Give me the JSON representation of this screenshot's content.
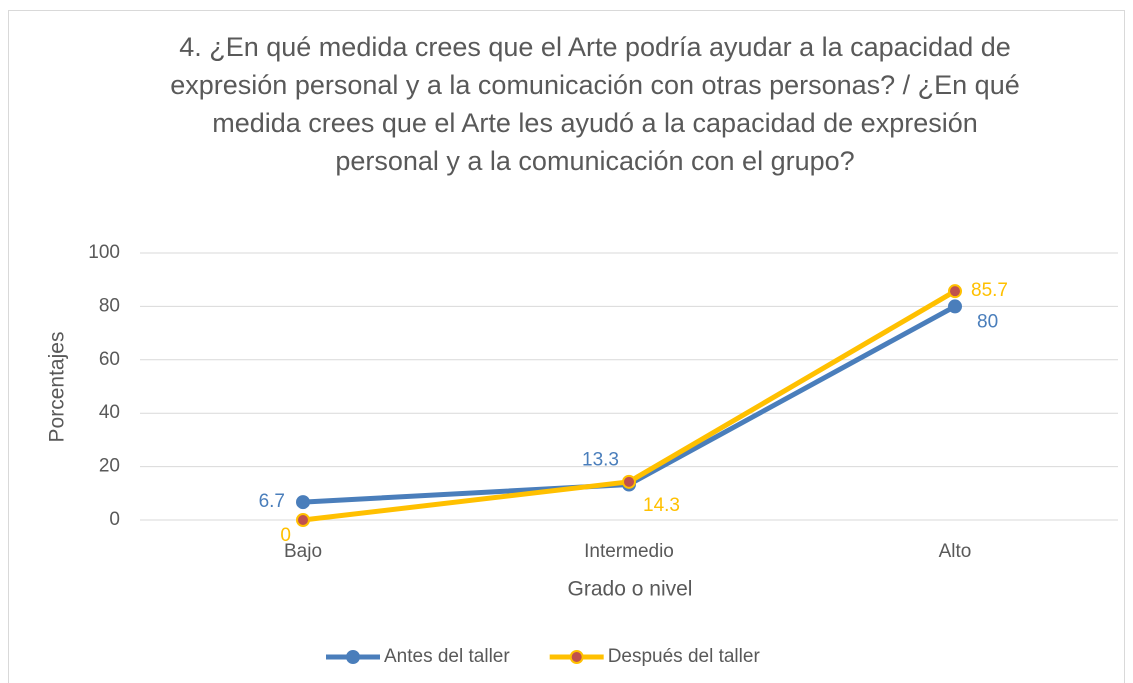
{
  "chart_data": {
    "type": "line",
    "title": "4. ¿En qué medida crees que el Arte podría ayudar a la capacidad de expresión personal y a la comunicación con otras personas? / ¿En qué medida crees que el Arte les ayudó a la capacidad de expresión personal y a la comunicación con el grupo?",
    "x_label": "Grado o nivel",
    "y_label": "Porcentajes",
    "categories": [
      "Bajo",
      "Intermedio",
      "Alto"
    ],
    "series": [
      {
        "name": "Antes del taller",
        "color": "#4a7ebb",
        "marker_color": "#4a7ebb",
        "values": [
          6.7,
          13.3,
          80
        ]
      },
      {
        "name": "Después del taller",
        "color": "#ffc000",
        "marker_color": "#c0504d",
        "values": [
          0,
          14.3,
          85.7
        ]
      }
    ],
    "ylim": [
      0,
      100
    ],
    "yticks": [
      0,
      20,
      40,
      60,
      80,
      100
    ],
    "grid": true,
    "legend": "bottom"
  }
}
